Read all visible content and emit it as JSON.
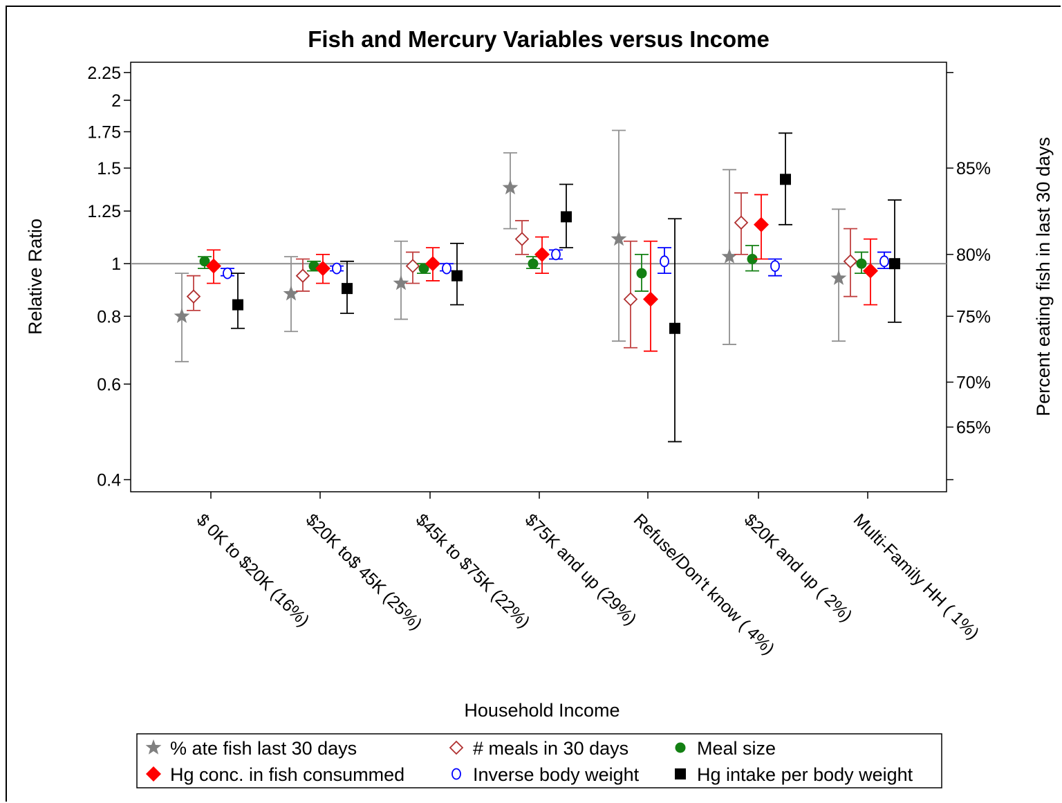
{
  "chart_data": {
    "type": "scatter",
    "title": "Fish and Mercury Variables versus Income",
    "xlabel": "Household Income",
    "ylabel": "Relative Ratio",
    "y2label": "Percent eating fish in last 30 days",
    "y_scale": "log",
    "ylim": [
      0.38,
      2.35
    ],
    "reference_line": 1,
    "yticks": [
      0.4,
      0.6,
      0.8,
      1,
      1.25,
      1.5,
      1.75,
      2,
      2.25
    ],
    "ytick_labels": [
      "0.4",
      "0.6",
      "0.8",
      "1",
      "1.25",
      "1.5",
      "1.75",
      "2",
      "2.25"
    ],
    "y2ticks": [
      {
        "label": "65%",
        "ratio": 0.5
      },
      {
        "label": "70%",
        "ratio": 0.605
      },
      {
        "label": "75%",
        "ratio": 0.8
      },
      {
        "label": "80%",
        "ratio": 1.04
      },
      {
        "label": "85%",
        "ratio": 1.5
      }
    ],
    "categories": [
      "$ 0K to $20K (16%)",
      "$20K to$ 45K (25%)",
      "$45k to $75K (22%)",
      "$75K and up (29%)",
      "Refuse/Don't know ( 4%)",
      "$20K and up ( 2%)",
      "Multi-Family HH ( 1%)"
    ],
    "series": [
      {
        "name": "% ate fish last 30 days",
        "marker": "star",
        "color": "#808080",
        "bar_color": "#909090",
        "values": [
          0.8,
          0.88,
          0.92,
          1.38,
          1.11,
          1.03,
          0.94
        ],
        "lower": [
          0.66,
          0.75,
          0.79,
          1.16,
          0.72,
          0.71,
          0.72
        ],
        "upper": [
          0.96,
          1.03,
          1.1,
          1.6,
          1.76,
          1.49,
          1.26
        ]
      },
      {
        "name": "# meals in 30 days",
        "marker": "diamond-open",
        "color": "#b03030",
        "bar_color": "#c04040",
        "values": [
          0.87,
          0.95,
          0.99,
          1.11,
          0.86,
          1.19,
          1.01
        ],
        "lower": [
          0.82,
          0.89,
          0.92,
          1.04,
          0.7,
          1.04,
          0.87
        ],
        "upper": [
          0.95,
          1.02,
          1.05,
          1.2,
          1.1,
          1.35,
          1.16
        ]
      },
      {
        "name": "Meal size",
        "marker": "circle-filled",
        "color": "#138013",
        "bar_color": "#138013",
        "values": [
          1.01,
          0.99,
          0.98,
          1.0,
          0.96,
          1.02,
          1.0
        ],
        "lower": [
          0.98,
          0.97,
          0.96,
          0.98,
          0.89,
          0.97,
          0.96
        ],
        "upper": [
          1.03,
          1.01,
          1.0,
          1.03,
          1.04,
          1.08,
          1.05
        ]
      },
      {
        "name": "Hg conc. in fish consummed",
        "marker": "diamond-filled",
        "color": "#ff0000",
        "bar_color": "#ff0000",
        "values": [
          0.99,
          0.98,
          1.0,
          1.04,
          0.86,
          1.18,
          0.97
        ],
        "lower": [
          0.92,
          0.92,
          0.93,
          0.96,
          0.69,
          1.02,
          0.84
        ],
        "upper": [
          1.06,
          1.04,
          1.07,
          1.12,
          1.1,
          1.34,
          1.11
        ]
      },
      {
        "name": "Inverse body weight",
        "marker": "circle-open",
        "color": "#0000ff",
        "bar_color": "#0000ff",
        "values": [
          0.96,
          0.98,
          0.98,
          1.04,
          1.01,
          0.99,
          1.01
        ],
        "lower": [
          0.95,
          0.97,
          0.97,
          1.02,
          0.96,
          0.95,
          0.98
        ],
        "upper": [
          0.98,
          0.99,
          1.0,
          1.06,
          1.07,
          1.02,
          1.05
        ]
      },
      {
        "name": "Hg intake per body weight",
        "marker": "square-filled",
        "color": "#000000",
        "bar_color": "#000000",
        "values": [
          0.84,
          0.9,
          0.95,
          1.22,
          0.76,
          1.43,
          1.0
        ],
        "lower": [
          0.76,
          0.81,
          0.84,
          1.07,
          0.47,
          1.18,
          0.78
        ],
        "upper": [
          0.96,
          1.01,
          1.09,
          1.4,
          1.21,
          1.74,
          1.31
        ]
      }
    ],
    "legend_position": "bottom"
  }
}
